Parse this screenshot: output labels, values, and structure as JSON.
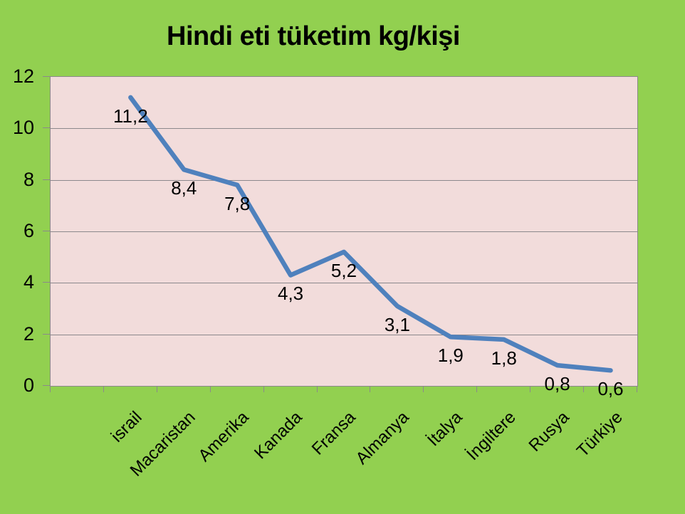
{
  "chart_data": {
    "type": "line",
    "title": "Hindi eti tüketim kg/kişi",
    "categories": [
      "israil",
      "Macaristan",
      "Amerika",
      "Kanada",
      "Fransa",
      "Almanya",
      "İtalya",
      "İngiltere",
      "Rusya",
      "Türkiye"
    ],
    "values": [
      11.2,
      8.4,
      7.8,
      4.3,
      5.2,
      3.1,
      1.9,
      1.8,
      0.8,
      0.6
    ],
    "value_labels": [
      "11,2",
      "8,4",
      "7,8",
      "4,3",
      "5,2",
      "3,1",
      "1,9",
      "1,8",
      "0,8",
      "0,6"
    ],
    "xlabel": "",
    "ylabel": "",
    "ylim": [
      0,
      12
    ],
    "ytick_step": 2,
    "ytick_labels": [
      "0",
      "2",
      "4",
      "6",
      "8",
      "10",
      "12"
    ],
    "grid": "horizontal",
    "legend": "none",
    "x_slots": 11,
    "x_first_slot_offset": 1.5,
    "data_label_position": "below",
    "colors": {
      "background": "#92d050",
      "plot_background": "#f2dcdb",
      "line": "#4f81bd",
      "gridline": "#8c888c",
      "axis": "#8c888c",
      "text": "#000000"
    }
  }
}
